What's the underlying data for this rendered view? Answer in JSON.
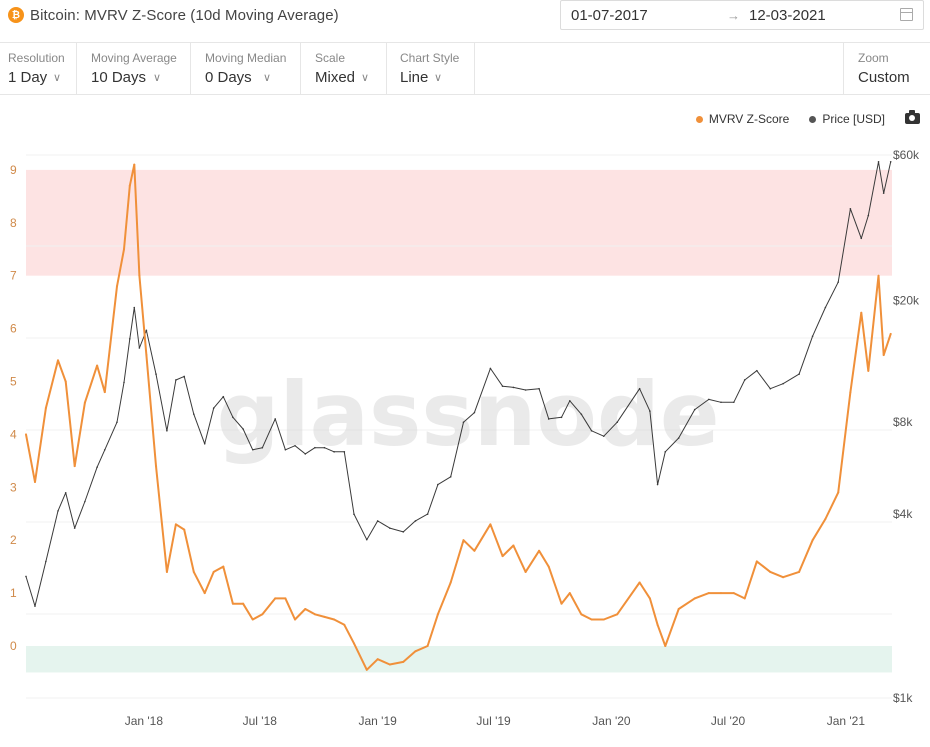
{
  "header": {
    "title": "Bitcoin: MVRV Z-Score (10d Moving Average)",
    "icon": "bitcoin-icon",
    "date_from": "01-07-2017",
    "date_arrow": "→",
    "date_to": "12-03-2021"
  },
  "controls": {
    "resolution": {
      "label": "Resolution",
      "value": "1 Day"
    },
    "moving_average": {
      "label": "Moving Average",
      "value": "10 Days"
    },
    "moving_median": {
      "label": "Moving Median",
      "value": "0 Days"
    },
    "scale": {
      "label": "Scale",
      "value": "Mixed"
    },
    "chart_style": {
      "label": "Chart Style",
      "value": "Line"
    },
    "zoom": {
      "label": "Zoom",
      "value": "Custom"
    }
  },
  "legend": {
    "zscore": "MVRV Z-Score",
    "price": "Price [USD]"
  },
  "watermark": "glassnode",
  "colors": {
    "zscore": "#f0903a",
    "price": "#3a3a3a",
    "overvalued_band": "#fde3e3",
    "undervalued_band": "#e5f4ee",
    "left_axis_text": "#d08a4a"
  },
  "chart_data": {
    "type": "line",
    "x_ticks": [
      "Jan '18",
      "Jul '18",
      "Jan '19",
      "Jul '19",
      "Jan '20",
      "Jul '20",
      "Jan '21"
    ],
    "y_left_ticks": [
      "9",
      "8",
      "7",
      "6",
      "5",
      "4",
      "3",
      "2",
      "1",
      "0"
    ],
    "y_right_ticks": [
      "$60k",
      "$20k",
      "$8k",
      "$4k",
      "$1k"
    ],
    "ylim_left": [
      -0.5,
      9.2
    ],
    "right_axis_scale": "log",
    "bands": [
      {
        "from": 7,
        "to": 9,
        "color": "#fde3e3"
      },
      {
        "from": -0.5,
        "to": 0,
        "color": "#e5f4ee"
      }
    ],
    "series": [
      {
        "name": "MVRV Z-Score",
        "axis": "left",
        "color": "#f0903a",
        "x": [
          "2017-07-01",
          "2017-07-15",
          "2017-08-01",
          "2017-08-20",
          "2017-09-01",
          "2017-09-15",
          "2017-10-01",
          "2017-10-20",
          "2017-11-01",
          "2017-11-20",
          "2017-12-01",
          "2017-12-10",
          "2017-12-17",
          "2017-12-25",
          "2018-01-05",
          "2018-01-20",
          "2018-02-06",
          "2018-02-20",
          "2018-03-05",
          "2018-03-20",
          "2018-04-06",
          "2018-04-20",
          "2018-05-05",
          "2018-05-20",
          "2018-06-05",
          "2018-06-20",
          "2018-07-05",
          "2018-07-25",
          "2018-08-10",
          "2018-08-25",
          "2018-09-10",
          "2018-09-25",
          "2018-10-10",
          "2018-10-25",
          "2018-11-10",
          "2018-11-25",
          "2018-12-15",
          "2019-01-01",
          "2019-01-20",
          "2019-02-10",
          "2019-03-01",
          "2019-03-20",
          "2019-04-05",
          "2019-04-25",
          "2019-05-15",
          "2019-06-01",
          "2019-06-26",
          "2019-07-15",
          "2019-08-01",
          "2019-08-20",
          "2019-09-10",
          "2019-09-25",
          "2019-10-15",
          "2019-10-28",
          "2019-11-15",
          "2019-12-01",
          "2019-12-20",
          "2020-01-10",
          "2020-02-14",
          "2020-03-01",
          "2020-03-13",
          "2020-03-25",
          "2020-04-15",
          "2020-05-10",
          "2020-06-01",
          "2020-06-20",
          "2020-07-10",
          "2020-07-27",
          "2020-08-15",
          "2020-09-05",
          "2020-09-25",
          "2020-10-20",
          "2020-11-10",
          "2020-11-30",
          "2020-12-20",
          "2021-01-08",
          "2021-01-25",
          "2021-02-05",
          "2021-02-21",
          "2021-03-01",
          "2021-03-12"
        ],
        "y": [
          4.0,
          3.1,
          4.5,
          5.4,
          5.0,
          3.4,
          4.6,
          5.3,
          4.8,
          6.8,
          7.5,
          8.7,
          9.1,
          7.0,
          5.5,
          3.4,
          1.4,
          2.3,
          2.2,
          1.4,
          1.0,
          1.4,
          1.5,
          0.8,
          0.8,
          0.5,
          0.6,
          0.9,
          0.9,
          0.5,
          0.7,
          0.6,
          0.55,
          0.5,
          0.4,
          0.05,
          -0.45,
          -0.25,
          -0.35,
          -0.3,
          -0.1,
          0.0,
          0.6,
          1.2,
          2.0,
          1.8,
          2.3,
          1.7,
          1.9,
          1.4,
          1.8,
          1.5,
          0.8,
          1.0,
          0.6,
          0.5,
          0.5,
          0.6,
          1.2,
          0.9,
          0.4,
          0.0,
          0.7,
          0.9,
          1.0,
          1.0,
          1.0,
          0.9,
          1.6,
          1.4,
          1.3,
          1.4,
          2.0,
          2.4,
          2.9,
          4.8,
          6.3,
          5.2,
          7.0,
          5.5,
          5.9
        ]
      },
      {
        "name": "Price [USD]",
        "axis": "right",
        "color": "#3a3a3a",
        "x": [
          "2017-07-01",
          "2017-07-15",
          "2017-08-01",
          "2017-08-20",
          "2017-09-01",
          "2017-09-15",
          "2017-10-01",
          "2017-10-20",
          "2017-11-01",
          "2017-11-20",
          "2017-12-01",
          "2017-12-10",
          "2017-12-17",
          "2017-12-25",
          "2018-01-05",
          "2018-01-20",
          "2018-02-06",
          "2018-02-20",
          "2018-03-05",
          "2018-03-20",
          "2018-04-06",
          "2018-04-20",
          "2018-05-05",
          "2018-05-20",
          "2018-06-05",
          "2018-06-20",
          "2018-07-05",
          "2018-07-25",
          "2018-08-10",
          "2018-08-25",
          "2018-09-10",
          "2018-09-25",
          "2018-10-10",
          "2018-10-25",
          "2018-11-10",
          "2018-11-25",
          "2018-12-15",
          "2019-01-01",
          "2019-01-20",
          "2019-02-10",
          "2019-03-01",
          "2019-03-20",
          "2019-04-05",
          "2019-04-25",
          "2019-05-15",
          "2019-06-01",
          "2019-06-26",
          "2019-07-15",
          "2019-08-01",
          "2019-08-20",
          "2019-09-10",
          "2019-09-25",
          "2019-10-15",
          "2019-10-28",
          "2019-11-15",
          "2019-12-01",
          "2019-12-20",
          "2020-01-10",
          "2020-02-14",
          "2020-03-01",
          "2020-03-13",
          "2020-03-25",
          "2020-04-15",
          "2020-05-10",
          "2020-06-01",
          "2020-06-20",
          "2020-07-10",
          "2020-07-27",
          "2020-08-15",
          "2020-09-05",
          "2020-09-25",
          "2020-10-20",
          "2020-11-10",
          "2020-11-30",
          "2020-12-20",
          "2021-01-08",
          "2021-01-25",
          "2021-02-05",
          "2021-02-21",
          "2021-03-01",
          "2021-03-12"
        ],
        "y": [
          2500,
          2000,
          2800,
          4100,
          4700,
          3600,
          4400,
          5700,
          6500,
          8000,
          10800,
          15000,
          19000,
          14000,
          16000,
          11500,
          7500,
          11000,
          11300,
          8500,
          6800,
          8900,
          9700,
          8300,
          7600,
          6500,
          6600,
          8200,
          6500,
          6700,
          6300,
          6600,
          6600,
          6400,
          6400,
          4000,
          3300,
          3800,
          3600,
          3500,
          3800,
          4000,
          5000,
          5300,
          8000,
          8600,
          12000,
          10500,
          10400,
          10200,
          10300,
          8200,
          8300,
          9400,
          8500,
          7500,
          7200,
          8000,
          10300,
          8700,
          5000,
          6400,
          7100,
          8800,
          9500,
          9300,
          9300,
          11000,
          11800,
          10300,
          10700,
          11500,
          15300,
          19000,
          23000,
          40000,
          32000,
          38000,
          57000,
          45000,
          57000
        ]
      }
    ]
  }
}
